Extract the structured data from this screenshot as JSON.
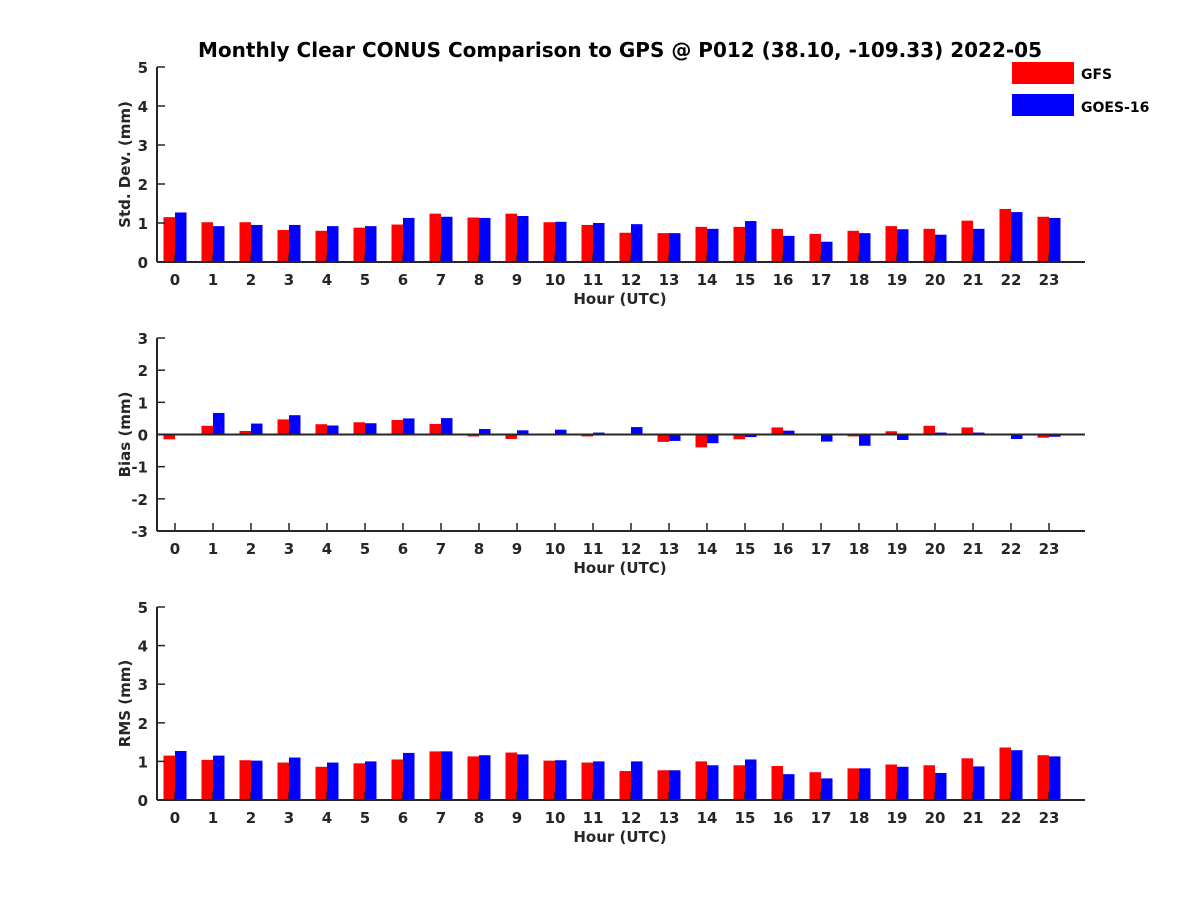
{
  "title": "Monthly Clear CONUS Comparison to GPS @ P012 (38.10, -109.33) 2022-05",
  "colors": {
    "GFS": "#ff0000",
    "GOES-16": "#0000ff"
  },
  "legend": {
    "position": "top-right",
    "items": [
      "GFS",
      "GOES-16"
    ]
  },
  "chart_data": [
    {
      "type": "bar",
      "title": "",
      "xlabel": "Hour (UTC)",
      "ylabel": "Std. Dev. (mm)",
      "ylim": [
        0,
        5
      ],
      "yticks": [
        0,
        1,
        2,
        3,
        4,
        5
      ],
      "grid": false,
      "categories": [
        "0",
        "1",
        "2",
        "3",
        "4",
        "5",
        "6",
        "7",
        "8",
        "9",
        "10",
        "11",
        "12",
        "13",
        "14",
        "15",
        "16",
        "17",
        "18",
        "19",
        "20",
        "21",
        "22",
        "23"
      ],
      "series": [
        {
          "name": "GFS",
          "values": [
            1.15,
            1.02,
            1.02,
            0.82,
            0.8,
            0.88,
            0.96,
            1.24,
            1.14,
            1.24,
            1.02,
            0.95,
            0.75,
            0.74,
            0.9,
            0.9,
            0.85,
            0.72,
            0.8,
            0.92,
            0.85,
            1.06,
            1.36,
            1.16
          ]
        },
        {
          "name": "GOES-16",
          "values": [
            1.27,
            0.92,
            0.95,
            0.95,
            0.92,
            0.92,
            1.13,
            1.16,
            1.13,
            1.18,
            1.03,
            1.0,
            0.97,
            0.74,
            0.85,
            1.05,
            0.67,
            0.52,
            0.74,
            0.84,
            0.7,
            0.85,
            1.28,
            1.13
          ]
        }
      ]
    },
    {
      "type": "bar",
      "title": "",
      "xlabel": "Hour (UTC)",
      "ylabel": "Bias (mm)",
      "ylim": [
        -3,
        3
      ],
      "yticks": [
        -3,
        -2,
        -1,
        0,
        1,
        2,
        3
      ],
      "grid": false,
      "categories": [
        "0",
        "1",
        "2",
        "3",
        "4",
        "5",
        "6",
        "7",
        "8",
        "9",
        "10",
        "11",
        "12",
        "13",
        "14",
        "15",
        "16",
        "17",
        "18",
        "19",
        "20",
        "21",
        "22",
        "23"
      ],
      "series": [
        {
          "name": "GFS",
          "values": [
            -0.15,
            0.27,
            0.11,
            0.47,
            0.32,
            0.38,
            0.45,
            0.33,
            -0.06,
            -0.14,
            0.0,
            -0.06,
            0.0,
            -0.23,
            -0.4,
            -0.15,
            0.22,
            0.03,
            -0.06,
            0.1,
            0.27,
            0.22,
            0.0,
            -0.1
          ]
        },
        {
          "name": "GOES-16",
          "values": [
            0.03,
            0.67,
            0.34,
            0.6,
            0.28,
            0.35,
            0.5,
            0.51,
            0.17,
            0.13,
            0.15,
            0.06,
            0.23,
            -0.2,
            -0.27,
            -0.08,
            0.12,
            -0.22,
            -0.35,
            -0.17,
            0.06,
            0.06,
            -0.14,
            -0.07
          ]
        }
      ]
    },
    {
      "type": "bar",
      "title": "",
      "xlabel": "Hour (UTC)",
      "ylabel": "RMS (mm)",
      "ylim": [
        0,
        5
      ],
      "yticks": [
        0,
        1,
        2,
        3,
        4,
        5
      ],
      "grid": false,
      "categories": [
        "0",
        "1",
        "2",
        "3",
        "4",
        "5",
        "6",
        "7",
        "8",
        "9",
        "10",
        "11",
        "12",
        "13",
        "14",
        "15",
        "16",
        "17",
        "18",
        "19",
        "20",
        "21",
        "22",
        "23"
      ],
      "series": [
        {
          "name": "GFS",
          "values": [
            1.15,
            1.04,
            1.03,
            0.97,
            0.86,
            0.95,
            1.05,
            1.26,
            1.13,
            1.23,
            1.02,
            0.97,
            0.75,
            0.77,
            1.0,
            0.9,
            0.88,
            0.72,
            0.82,
            0.92,
            0.9,
            1.08,
            1.36,
            1.16
          ]
        },
        {
          "name": "GOES-16",
          "values": [
            1.27,
            1.15,
            1.02,
            1.1,
            0.97,
            1.0,
            1.22,
            1.26,
            1.16,
            1.18,
            1.03,
            1.0,
            1.0,
            0.77,
            0.9,
            1.05,
            0.67,
            0.56,
            0.82,
            0.86,
            0.7,
            0.87,
            1.29,
            1.13
          ]
        }
      ]
    }
  ]
}
